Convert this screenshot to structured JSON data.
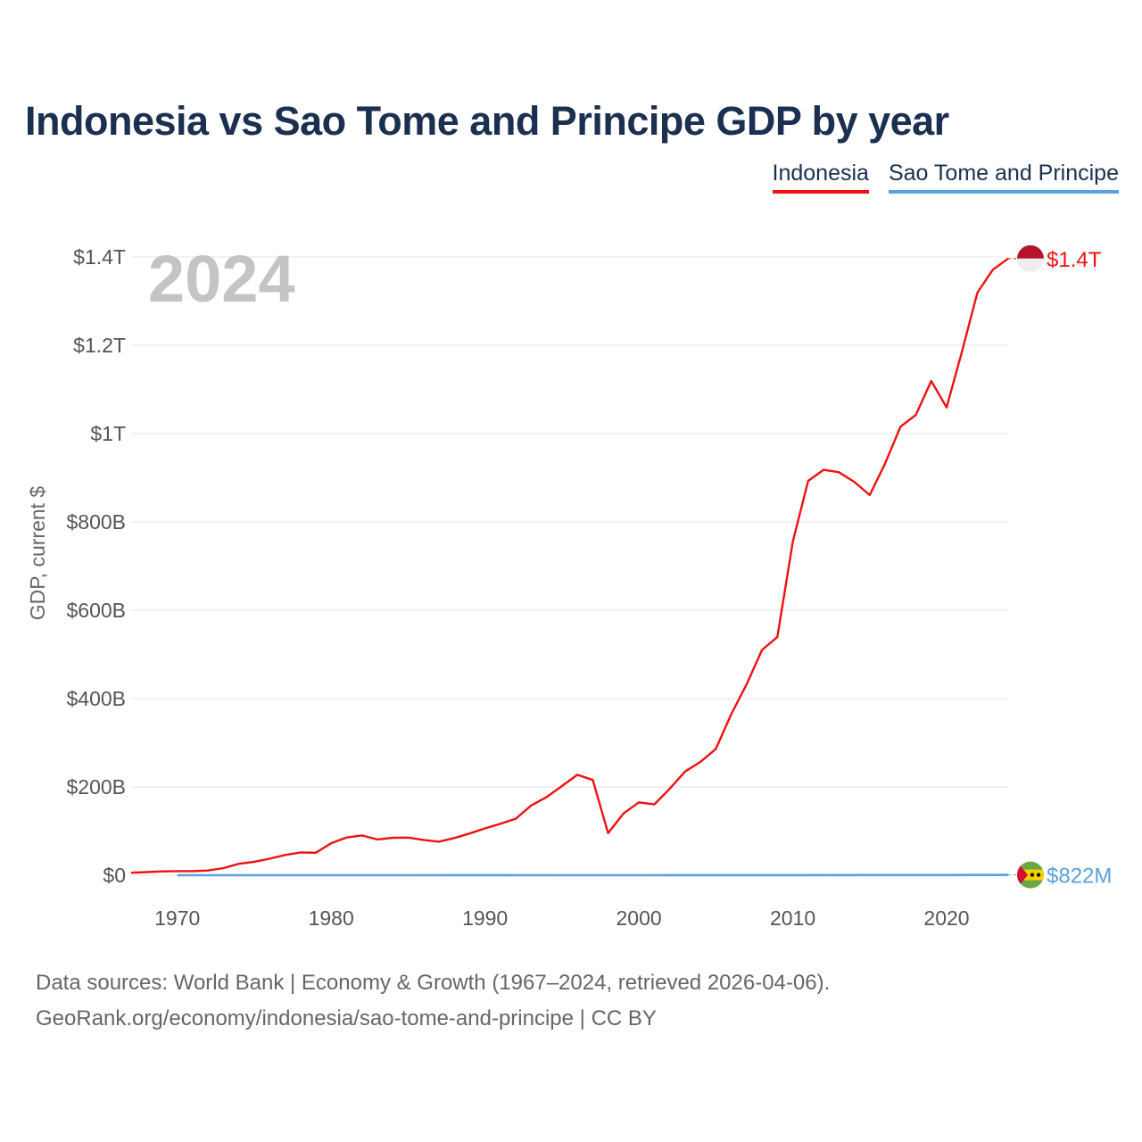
{
  "header": {
    "title": "Indonesia vs Sao Tome and Principe GDP by year"
  },
  "legend": [
    {
      "label": "Indonesia",
      "color": "#ee1111"
    },
    {
      "label": "Sao Tome and Principe",
      "color": "#5aa0e0"
    }
  ],
  "footer": {
    "line1": "Data sources: World Bank | Economy & Growth (1967–2024, retrieved 2026-04-06).",
    "line2": "GeoRank.org/economy/indonesia/sao-tome-and-principe | CC BY"
  },
  "chart_data": {
    "type": "line",
    "title": "Indonesia vs Sao Tome and Principe GDP by year",
    "ylabel": "GDP, current $",
    "xlabel": "",
    "current_year_label": "2024",
    "xlim": [
      1967,
      2024
    ],
    "ylim": [
      0,
      1400
    ],
    "value_unit": "billion USD",
    "y_ticks": [
      {
        "value": 0,
        "label": "$0"
      },
      {
        "value": 200,
        "label": "$200B"
      },
      {
        "value": 400,
        "label": "$400B"
      },
      {
        "value": 600,
        "label": "$600B"
      },
      {
        "value": 800,
        "label": "$800B"
      },
      {
        "value": 1000,
        "label": "$1T"
      },
      {
        "value": 1200,
        "label": "$1.2T"
      },
      {
        "value": 1400,
        "label": "$1.4T"
      }
    ],
    "x_ticks": [
      {
        "value": 1970,
        "label": "1970"
      },
      {
        "value": 1980,
        "label": "1980"
      },
      {
        "value": 1990,
        "label": "1990"
      },
      {
        "value": 2000,
        "label": "2000"
      },
      {
        "value": 2010,
        "label": "2010"
      },
      {
        "value": 2020,
        "label": "2020"
      }
    ],
    "series": [
      {
        "name": "Indonesia",
        "color": "#ee1111",
        "end_label": "$1.4T",
        "flag": "indonesia-flag",
        "x": [
          1967,
          1968,
          1969,
          1970,
          1971,
          1972,
          1973,
          1974,
          1975,
          1976,
          1977,
          1978,
          1979,
          1980,
          1981,
          1982,
          1983,
          1984,
          1985,
          1986,
          1987,
          1988,
          1989,
          1990,
          1991,
          1992,
          1993,
          1994,
          1995,
          1996,
          1997,
          1998,
          1999,
          2000,
          2001,
          2002,
          2003,
          2004,
          2005,
          2006,
          2007,
          2008,
          2009,
          2010,
          2011,
          2012,
          2013,
          2014,
          2015,
          2016,
          2017,
          2018,
          2019,
          2020,
          2021,
          2022,
          2023,
          2024
        ],
        "values": [
          5.7,
          7.1,
          8.6,
          9.2,
          9.3,
          10.8,
          16.1,
          25.8,
          30.5,
          37.3,
          45.8,
          51.5,
          51.0,
          72.5,
          85.5,
          90.2,
          81.1,
          84.9,
          85.3,
          80.1,
          75.9,
          84.3,
          94.5,
          106.1,
          116.6,
          128.0,
          158.0,
          176.9,
          202.1,
          227.4,
          215.7,
          95.4,
          140.0,
          165.0,
          160.4,
          195.7,
          234.8,
          256.8,
          285.9,
          364.6,
          432.2,
          510.2,
          539.6,
          755.1,
          892.9,
          917.9,
          912.5,
          890.8,
          860.9,
          931.9,
          1015.6,
          1042.3,
          1119.1,
          1059.1,
          1186.5,
          1319.1,
          1371.2,
          1396.3
        ]
      },
      {
        "name": "Sao Tome and Principe",
        "color": "#5aa0e0",
        "end_label": "$822M",
        "flag": "sao-tome-and-principe-flag",
        "x": [
          1970,
          1975,
          1980,
          1985,
          1990,
          1995,
          2000,
          2005,
          2010,
          2015,
          2020,
          2022,
          2023,
          2024
        ],
        "values": [
          0.05,
          0.06,
          0.07,
          0.06,
          0.12,
          0.07,
          0.08,
          0.13,
          0.2,
          0.32,
          0.47,
          0.55,
          0.68,
          0.822
        ]
      }
    ]
  }
}
